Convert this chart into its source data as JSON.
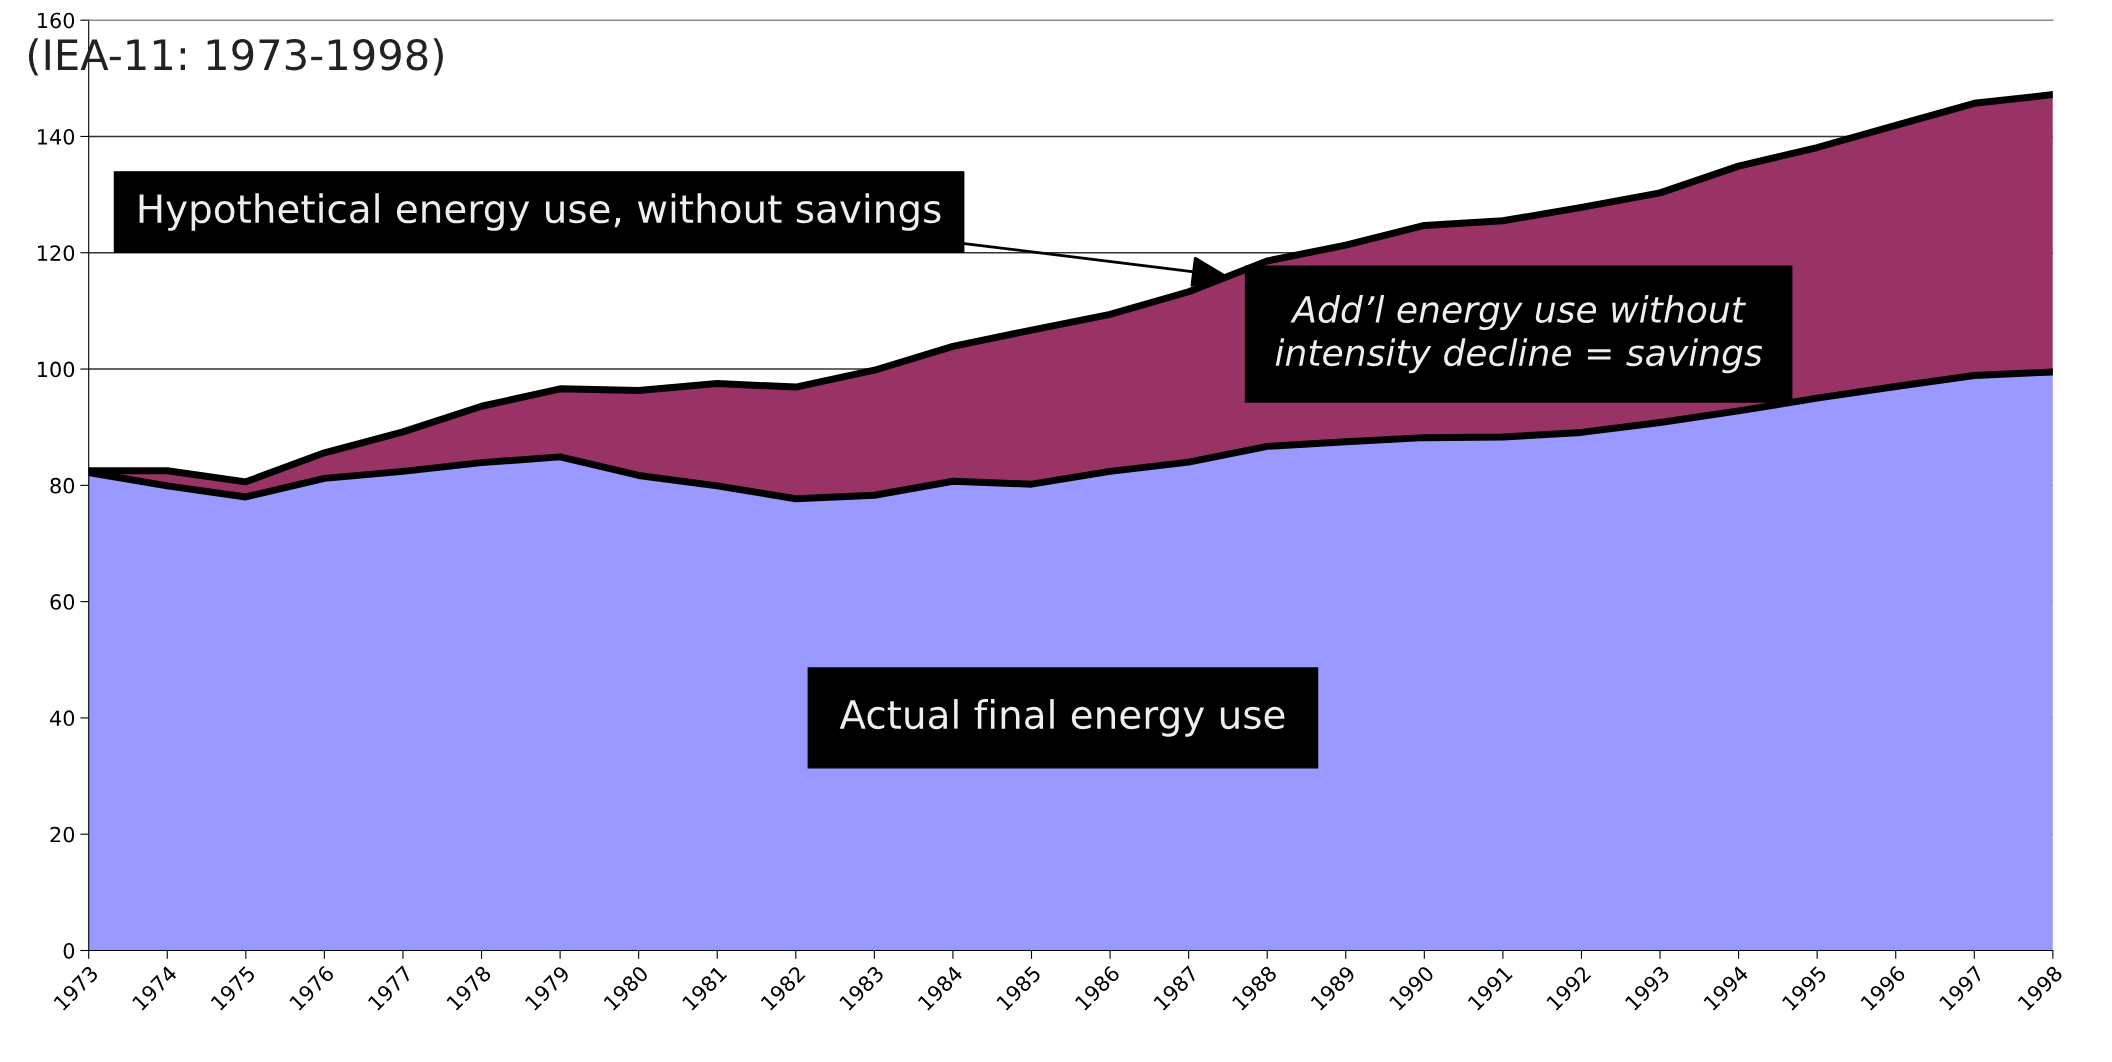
{
  "chart_data": {
    "type": "area",
    "stacked": true,
    "title": "(IEA-11: 1973-1998)",
    "x": [
      1973,
      1974,
      1975,
      1976,
      1977,
      1978,
      1979,
      1980,
      1981,
      1982,
      1983,
      1984,
      1985,
      1986,
      1987,
      1988,
      1989,
      1990,
      1991,
      1992,
      1993,
      1994,
      1995,
      1996,
      1997,
      1998
    ],
    "series": [
      {
        "name": "Actual final energy use",
        "color": "#9999ff",
        "values": [
          82.2,
          79.9,
          78.0,
          81.2,
          82.4,
          83.9,
          84.9,
          81.7,
          79.9,
          77.7,
          78.3,
          80.7,
          80.2,
          82.4,
          84.0,
          86.7,
          87.5,
          88.2,
          88.3,
          89.1,
          90.8,
          92.8,
          95.0,
          97.0,
          98.9,
          99.5
        ]
      },
      {
        "name": "Add’l energy use without\nintensity decline = savings",
        "color": "#993366",
        "values": [
          0.3,
          2.6,
          2.6,
          4.4,
          6.8,
          9.7,
          11.7,
          14.6,
          17.6,
          19.2,
          21.5,
          23.2,
          26.5,
          27.0,
          29.3,
          31.9,
          33.8,
          36.5,
          37.2,
          38.7,
          39.5,
          42.1,
          43.1,
          44.9,
          46.8,
          47.7
        ]
      }
    ],
    "annotations": [
      {
        "text": "Hypothetical energy use, without savings",
        "x": 1987.5,
        "y": 116
      }
    ],
    "xlim": [
      1973,
      1998
    ],
    "xticks": [
      1973,
      1974,
      1975,
      1976,
      1977,
      1978,
      1979,
      1980,
      1981,
      1982,
      1983,
      1984,
      1985,
      1986,
      1987,
      1988,
      1989,
      1990,
      1991,
      1992,
      1993,
      1994,
      1995,
      1996,
      1997,
      1998
    ],
    "ylim": [
      0,
      160
    ],
    "yticks": [
      0,
      20,
      40,
      60,
      80,
      100,
      120,
      140,
      160
    ],
    "grid": "y",
    "legend": false
  }
}
